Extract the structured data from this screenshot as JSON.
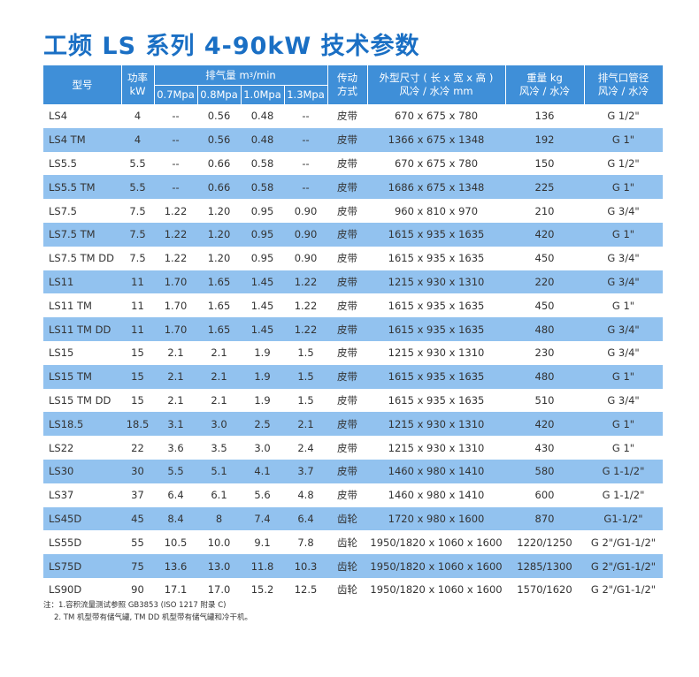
{
  "title": "工频 LS 系列 4-90kW 技术参数",
  "header": {
    "model": "型号",
    "power_top": "功率",
    "power_bottom": "kW",
    "displacement_pre": "排气量 m",
    "displacement_sup": "3",
    "displacement_post": "/min",
    "p1": "0.7Mpa",
    "p2": "0.8Mpa",
    "p3": "1.0Mpa",
    "p4": "1.3Mpa",
    "drive_top": "传动",
    "drive_bottom": "方式",
    "dim_top": "外型尺寸 ( 长 x 宽 x 高 )",
    "dim_bottom": "风冷 / 水冷 mm",
    "weight_top": "重量 kg",
    "weight_bottom": "风冷 / 水冷",
    "outlet_top": "排气口管径",
    "outlet_bottom": "风冷 / 水冷"
  },
  "rows": [
    [
      "LS4",
      "4",
      "--",
      "0.56",
      "0.48",
      "--",
      "皮带",
      "670 x 675 x 780",
      "136",
      "G 1/2\""
    ],
    [
      "LS4 TM",
      "4",
      "--",
      "0.56",
      "0.48",
      "--",
      "皮带",
      "1366 x 675 x 1348",
      "192",
      "G 1\""
    ],
    [
      "LS5.5",
      "5.5",
      "--",
      "0.66",
      "0.58",
      "--",
      "皮带",
      "670 x 675 x 780",
      "150",
      "G 1/2\""
    ],
    [
      "LS5.5 TM",
      "5.5",
      "--",
      "0.66",
      "0.58",
      "--",
      "皮带",
      "1686 x 675 x 1348",
      "225",
      "G 1\""
    ],
    [
      "LS7.5",
      "7.5",
      "1.22",
      "1.20",
      "0.95",
      "0.90",
      "皮带",
      "960 x 810 x 970",
      "210",
      "G 3/4\""
    ],
    [
      "LS7.5 TM",
      "7.5",
      "1.22",
      "1.20",
      "0.95",
      "0.90",
      "皮带",
      "1615 x 935 x 1635",
      "420",
      "G 1\""
    ],
    [
      "LS7.5 TM DD",
      "7.5",
      "1.22",
      "1.20",
      "0.95",
      "0.90",
      "皮带",
      "1615 x 935 x 1635",
      "450",
      "G 3/4\""
    ],
    [
      "LS11",
      "11",
      "1.70",
      "1.65",
      "1.45",
      "1.22",
      "皮带",
      "1215 x 930 x 1310",
      "220",
      "G 3/4\""
    ],
    [
      "LS11 TM",
      "11",
      "1.70",
      "1.65",
      "1.45",
      "1.22",
      "皮带",
      "1615 x 935 x 1635",
      "450",
      "G 1\""
    ],
    [
      "LS11 TM DD",
      "11",
      "1.70",
      "1.65",
      "1.45",
      "1.22",
      "皮带",
      "1615 x 935 x 1635",
      "480",
      "G 3/4\""
    ],
    [
      "LS15",
      "15",
      "2.1",
      "2.1",
      "1.9",
      "1.5",
      "皮带",
      "1215 x 930 x 1310",
      "230",
      "G 3/4\""
    ],
    [
      "LS15 TM",
      "15",
      "2.1",
      "2.1",
      "1.9",
      "1.5",
      "皮带",
      "1615 x 935 x 1635",
      "480",
      "G 1\""
    ],
    [
      "LS15 TM DD",
      "15",
      "2.1",
      "2.1",
      "1.9",
      "1.5",
      "皮带",
      "1615 x 935 x 1635",
      "510",
      "G 3/4\""
    ],
    [
      "LS18.5",
      "18.5",
      "3.1",
      "3.0",
      "2.5",
      "2.1",
      "皮带",
      "1215 x 930 x 1310",
      "420",
      "G 1\""
    ],
    [
      "LS22",
      "22",
      "3.6",
      "3.5",
      "3.0",
      "2.4",
      "皮带",
      "1215 x 930 x 1310",
      "430",
      "G 1\""
    ],
    [
      "LS30",
      "30",
      "5.5",
      "5.1",
      "4.1",
      "3.7",
      "皮带",
      "1460 x 980 x 1410",
      "580",
      "G 1-1/2\""
    ],
    [
      "LS37",
      "37",
      "6.4",
      "6.1",
      "5.6",
      "4.8",
      "皮带",
      "1460 x 980 x 1410",
      "600",
      "G 1-1/2\""
    ],
    [
      "LS45D",
      "45",
      "8.4",
      "8",
      "7.4",
      "6.4",
      "齿轮",
      "1720 x 980 x 1600",
      "870",
      "G1-1/2\""
    ],
    [
      "LS55D",
      "55",
      "10.5",
      "10.0",
      "9.1",
      "7.8",
      "齿轮",
      "1950/1820 x 1060 x 1600",
      "1220/1250",
      "G 2\"/G1-1/2\""
    ],
    [
      "LS75D",
      "75",
      "13.6",
      "13.0",
      "11.8",
      "10.3",
      "齿轮",
      "1950/1820 x 1060 x 1600",
      "1285/1300",
      "G 2\"/G1-1/2\""
    ],
    [
      "LS90D",
      "90",
      "17.1",
      "17.0",
      "15.2",
      "12.5",
      "齿轮",
      "1950/1820 x 1060 x 1600",
      "1570/1620",
      "G 2\"/G1-1/2\""
    ]
  ],
  "notes": [
    "注：1.容积流量测试参照 GB3853 (ISO 1217 附录 C)",
    "2. TM 机型带有储气罐, TM DD 机型带有储气罐和冷干机。"
  ],
  "colors": {
    "title": "#1a6fc4",
    "header_bg": "#3f8fd8",
    "alt_row": "#92c2ef"
  }
}
